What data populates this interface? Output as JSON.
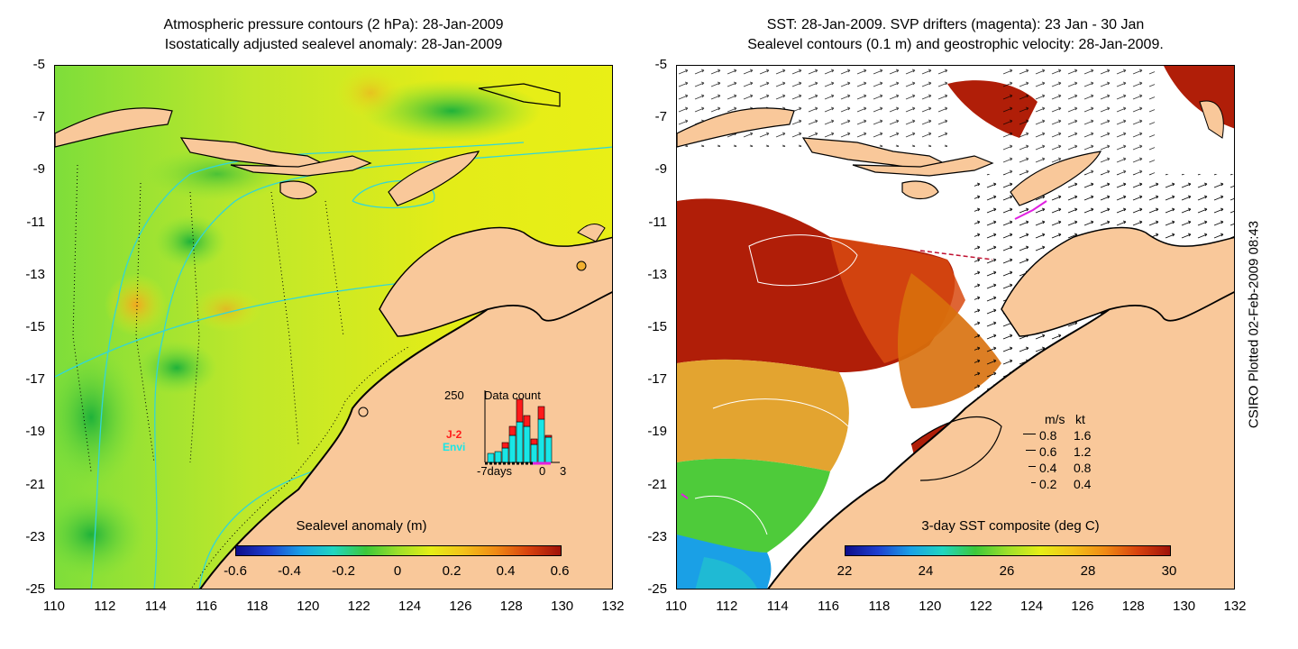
{
  "left_panel": {
    "title_line1": "Atmospheric pressure contours (2 hPa): 28-Jan-2009",
    "title_line2": "Isostatically adjusted sealevel anomaly: 28-Jan-2009",
    "colorbar_title": "Sealevel anomaly (m)",
    "colorbar_ticks": [
      "-0.6",
      "-0.4",
      "-0.2",
      "0",
      "0.2",
      "0.4",
      "0.6"
    ],
    "inset": {
      "max_label": "250",
      "title": "Data count",
      "legend_j2": "J-2",
      "legend_envi": "Envi",
      "x_left": "-7days",
      "x_mid": "0",
      "x_right": "3",
      "j2_color": "#ff1a1a",
      "envi_color": "#19e6e6"
    }
  },
  "right_panel": {
    "title_line1": "SST: 28-Jan-2009. SVP drifters (magenta): 23 Jan - 30 Jan",
    "title_line2": "Sealevel contours (0.1 m) and geostrophic velocity: 28-Jan-2009.",
    "colorbar_title": "3-day SST composite (deg C)",
    "colorbar_ticks": [
      "22",
      "24",
      "26",
      "28",
      "30"
    ],
    "velocity_legend": {
      "header_ms": "m/s",
      "header_kt": "kt",
      "rows": [
        {
          "ms": "0.8",
          "kt": "1.6"
        },
        {
          "ms": "0.6",
          "kt": "1.2"
        },
        {
          "ms": "0.4",
          "kt": "0.8"
        },
        {
          "ms": "0.2",
          "kt": "0.4"
        }
      ]
    }
  },
  "axes": {
    "y_ticks": [
      "-5",
      "-7",
      "-9",
      "-11",
      "-13",
      "-15",
      "-17",
      "-19",
      "-21",
      "-23",
      "-25"
    ],
    "x_ticks": [
      "110",
      "112",
      "114",
      "116",
      "118",
      "120",
      "122",
      "124",
      "126",
      "128",
      "130",
      "132"
    ]
  },
  "credit": "CSIRO Plotted 02-Feb-2009 08:43",
  "colors": {
    "land": "#f9c89a",
    "ocean_green": "#7ee13c",
    "ocean_yellow": "#e6ee16",
    "sst_red": "#b01e08",
    "contour_cyan": "#33d6d6",
    "drifter_magenta": "#e020e0"
  }
}
